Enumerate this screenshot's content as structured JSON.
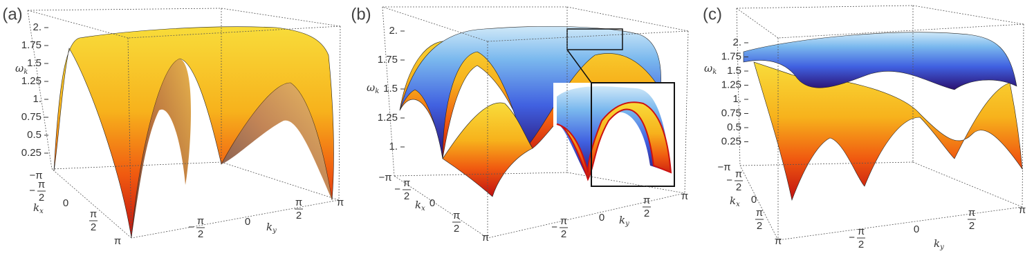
{
  "panels": [
    {
      "label": "(a)",
      "z_axis": {
        "symbol": "ω",
        "subscript": "k"
      },
      "z_ticks": [
        "2.",
        "1.75",
        "1.5",
        "1.25",
        "1.",
        "0.75",
        "0.5",
        "0.25"
      ],
      "x_axis": {
        "symbol": "k",
        "subscript": "x"
      },
      "y_axis": {
        "symbol": "k",
        "subscript": "y"
      },
      "x_ticks": [
        {
          "sign": "−",
          "numerator": "π"
        },
        {
          "sign": "−",
          "numerator": "π",
          "denominator": "2"
        },
        {
          "numerator": "0"
        },
        {
          "numerator": "π",
          "denominator": "2"
        },
        {
          "numerator": "π"
        }
      ],
      "y_ticks": [
        {
          "sign": "−",
          "numerator": "π",
          "denominator": "2"
        },
        {
          "numerator": "0"
        },
        {
          "numerator": "π",
          "denominator": "2"
        },
        {
          "numerator": "π"
        }
      ]
    },
    {
      "label": "(b)",
      "z_axis": {
        "symbol": "ω",
        "subscript": "k"
      },
      "z_ticks": [
        "2.",
        "1.75",
        "1.5",
        "1.25",
        "1."
      ],
      "x_axis": {
        "symbol": "k",
        "subscript": "x"
      },
      "y_axis": {
        "symbol": "k",
        "subscript": "y"
      },
      "x_ticks": [
        {
          "sign": "−",
          "numerator": "π"
        },
        {
          "sign": "−",
          "numerator": "π",
          "denominator": "2"
        },
        {
          "numerator": "0"
        },
        {
          "numerator": "π",
          "denominator": "2"
        },
        {
          "numerator": "π"
        }
      ],
      "y_ticks": [
        {
          "sign": "−",
          "numerator": "π",
          "denominator": "2"
        },
        {
          "numerator": "0"
        },
        {
          "numerator": "π",
          "denominator": "2"
        },
        {
          "numerator": "π"
        }
      ]
    },
    {
      "label": "(c)",
      "z_axis": {
        "symbol": "ω",
        "subscript": "k"
      },
      "z_ticks": [
        "2.",
        "1.75",
        "1.5",
        "1.25",
        "1.",
        "0.75",
        "0.5",
        "0.25"
      ],
      "x_axis": {
        "symbol": "k",
        "subscript": "x"
      },
      "y_axis": {
        "symbol": "k",
        "subscript": "y"
      },
      "x_ticks": [
        {
          "sign": "−",
          "numerator": "π"
        },
        {
          "sign": "−",
          "numerator": "π",
          "denominator": "2"
        },
        {
          "numerator": "0"
        },
        {
          "numerator": "π",
          "denominator": "2"
        },
        {
          "numerator": "π"
        }
      ],
      "y_ticks": [
        {
          "sign": "−",
          "numerator": "π",
          "denominator": "2"
        },
        {
          "numerator": "0"
        },
        {
          "numerator": "π",
          "denominator": "2"
        },
        {
          "numerator": "π"
        }
      ]
    }
  ]
}
